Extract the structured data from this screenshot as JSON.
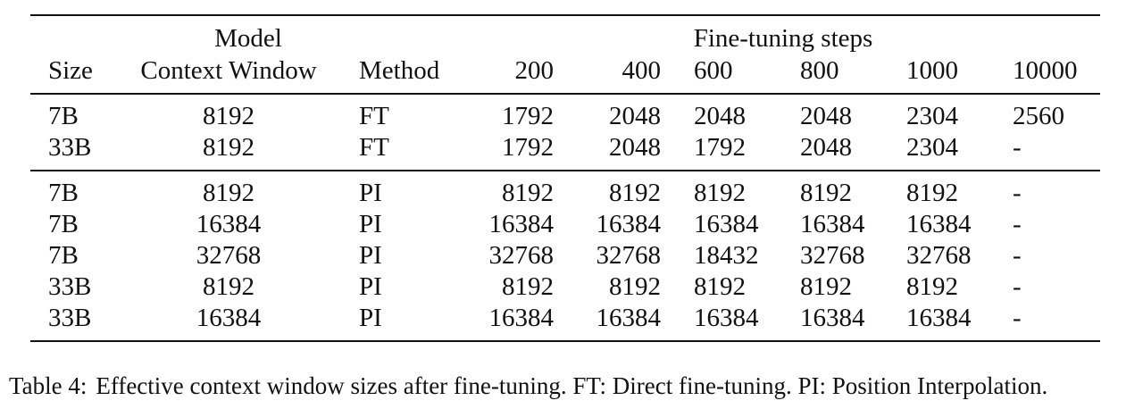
{
  "table": {
    "header": {
      "model_group": "Model",
      "ft_group": "Fine-tuning steps",
      "columns": [
        "Size",
        "Context Window",
        "Method",
        "200",
        "400",
        "600",
        "800",
        "1000",
        "10000"
      ]
    },
    "group1": [
      [
        "7B",
        "8192",
        "FT",
        "1792",
        "2048",
        "2048",
        "2048",
        "2304",
        "2560"
      ],
      [
        "33B",
        "8192",
        "FT",
        "1792",
        "2048",
        "1792",
        "2048",
        "2304",
        "-"
      ]
    ],
    "group2": [
      [
        "7B",
        "8192",
        "PI",
        "8192",
        "8192",
        "8192",
        "8192",
        "8192",
        "-"
      ],
      [
        "7B",
        "16384",
        "PI",
        "16384",
        "16384",
        "16384",
        "16384",
        "16384",
        "-"
      ],
      [
        "7B",
        "32768",
        "PI",
        "32768",
        "32768",
        "18432",
        "32768",
        "32768",
        "-"
      ],
      [
        "33B",
        "8192",
        "PI",
        "8192",
        "8192",
        "8192",
        "8192",
        "8192",
        "-"
      ],
      [
        "33B",
        "16384",
        "PI",
        "16384",
        "16384",
        "16384",
        "16384",
        "16384",
        "-"
      ]
    ]
  },
  "caption": {
    "label": "Table 4:",
    "text": "Effective context window sizes after fine-tuning. FT: Direct fine-tuning. PI: Position Interpolation."
  }
}
